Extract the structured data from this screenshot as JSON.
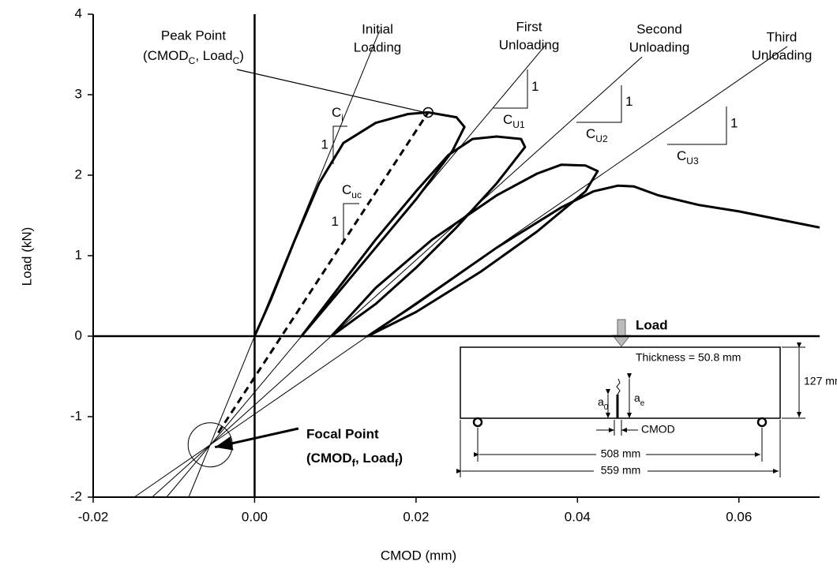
{
  "chart_data": {
    "type": "line",
    "xlabel": "CMOD (mm)",
    "ylabel": "Load (kN)",
    "xlim": [
      -0.02,
      0.07
    ],
    "ylim": [
      -2,
      4
    ],
    "xticks": [
      -0.02,
      {
        "value": 0,
        "label": "0.00"
      },
      0.02,
      0.04,
      0.06
    ],
    "yticks": [
      -2,
      -1,
      0,
      1,
      2,
      3,
      4
    ],
    "series": [
      {
        "color": "#000000",
        "style": "thick",
        "x": [
          0,
          0.002,
          0.005,
          0.008,
          0.011,
          0.015,
          0.019,
          0.0215,
          0.025,
          0.026,
          0.0245,
          0.02,
          0.015,
          0.01,
          0.0058,
          0.01,
          0.015,
          0.02,
          0.024,
          0.027,
          0.03,
          0.033,
          0.0335,
          0.03,
          0.025,
          0.02,
          0.015,
          0.0095,
          0.015,
          0.022,
          0.03,
          0.035,
          0.038,
          0.041,
          0.0425,
          0.041,
          0.035,
          0.028,
          0.02,
          0.014,
          0.02,
          0.03,
          0.038,
          0.042,
          0.045,
          0.047,
          0.05,
          0.055,
          0.06,
          0.065,
          0.07
        ],
        "values": [
          0,
          0.45,
          1.2,
          1.9,
          2.4,
          2.65,
          2.76,
          2.78,
          2.72,
          2.6,
          2.3,
          1.7,
          1.1,
          0.5,
          0,
          0.55,
          1.2,
          1.8,
          2.25,
          2.45,
          2.48,
          2.45,
          2.35,
          1.9,
          1.35,
          0.85,
          0.4,
          0,
          0.6,
          1.2,
          1.75,
          2.02,
          2.13,
          2.12,
          2.05,
          1.8,
          1.3,
          0.8,
          0.3,
          0,
          0.4,
          1.1,
          1.6,
          1.8,
          1.87,
          1.86,
          1.75,
          1.63,
          1.55,
          1.45,
          1.35
        ]
      },
      {
        "color": "#000000",
        "style": "thin",
        "x": [
          -0.00816,
          0.0155
        ],
        "values": [
          -2,
          3.8
        ]
      },
      {
        "color": "#000000",
        "style": "thin",
        "x": [
          -0.0109,
          0.036
        ],
        "values": [
          -2,
          3.61
        ]
      },
      {
        "color": "#000000",
        "style": "thin",
        "x": [
          -0.0127,
          0.048
        ],
        "values": [
          -2,
          3.47
        ]
      },
      {
        "color": "#000000",
        "style": "thin",
        "x": [
          -0.0149,
          0.066
        ],
        "values": [
          -2,
          3.6
        ]
      },
      {
        "color": "#000000",
        "style": "dashed",
        "x": [
          -0.0045,
          0.0215
        ],
        "values": [
          -1.2,
          2.78
        ]
      }
    ],
    "peak": {
      "x": 0.0215,
      "y": 2.78,
      "title": "Peak Point",
      "coords": [
        "(CMOD",
        "C",
        ", Load",
        "C",
        ")"
      ]
    },
    "focal": {
      "x": -0.0055,
      "y": -1.35,
      "title": "Focal Point",
      "coords": [
        "(CMOD",
        "f",
        ", Load",
        "f",
        ")"
      ]
    },
    "line_labels": [
      [
        "Initial",
        "Loading"
      ],
      [
        "First",
        "Unloading"
      ],
      [
        "Second",
        "Unloading"
      ],
      [
        "Third",
        "Unloading"
      ]
    ],
    "slopes": [
      {
        "label": [
          "C",
          "i"
        ],
        "rise": "1"
      },
      {
        "label": [
          "C",
          "uc"
        ],
        "rise": "1"
      },
      {
        "label": [
          "C",
          "U1"
        ],
        "rise": "1"
      },
      {
        "label": [
          "C",
          "U2"
        ],
        "rise": "1"
      },
      {
        "label": [
          "C",
          "U3"
        ],
        "rise": "1"
      }
    ],
    "specimen": {
      "load": "Load",
      "thickness": "Thickness = 50.8 mm",
      "depth": "127 mm",
      "a0": [
        "a",
        "0"
      ],
      "ae": [
        "a",
        "e"
      ],
      "cmod": "CMOD",
      "span": "508 mm",
      "length": "559 mm"
    }
  }
}
